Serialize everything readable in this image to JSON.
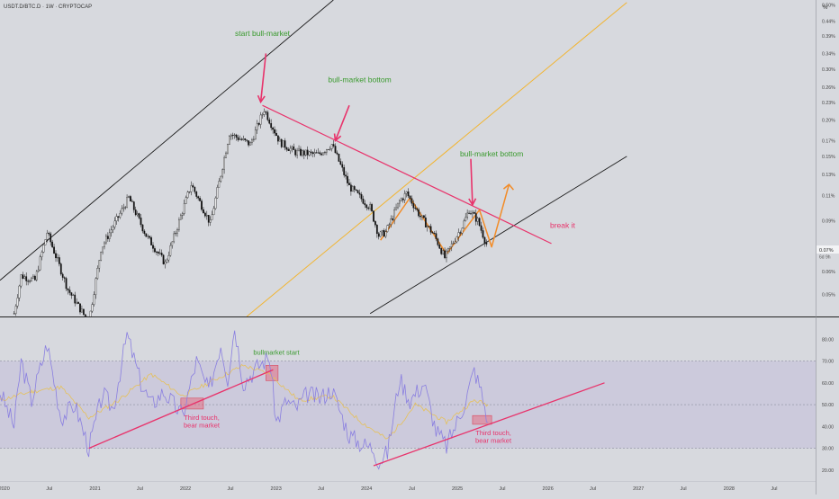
{
  "header": {
    "symbol_line": "USDT.D/BTC.D · 1W · CRYPTOCAP",
    "scale_mode": "%"
  },
  "colors": {
    "background": "#d7d9de",
    "candle": "#111111",
    "channel": "#1a1a1a",
    "midline": "#f2b531",
    "resistance": "#e8336b",
    "annotation_green": "#3a9a2e",
    "annotation_red": "#e8336b",
    "projection": "#f28c28",
    "rsi_line": "#8a7fe0",
    "rsi_ma": "#e6c15a",
    "rsi_band": "rgba(170,150,215,0.22)"
  },
  "chart_data": [
    {
      "type": "candlestick",
      "title": "USDT.D/BTC.D · 1W · CRYPTOCAP",
      "ylabel": "%",
      "yscale": "log",
      "ylim": [
        0.042,
        0.52
      ],
      "xlim": [
        "2019-12-15",
        "2028-12-15"
      ],
      "grid": false,
      "price_ticks": [
        "0.05%",
        "0.06%",
        "0.09%",
        "0.11%",
        "0.13%",
        "0.15%",
        "0.17%",
        "0.20%",
        "0.23%",
        "0.26%",
        "0.30%",
        "0.34%",
        "0.39%",
        "0.44%",
        "0.50%"
      ],
      "price_tick_values": [
        0.05,
        0.06,
        0.09,
        0.11,
        0.13,
        0.15,
        0.17,
        0.2,
        0.23,
        0.26,
        0.3,
        0.34,
        0.39,
        0.44,
        0.5
      ],
      "last_price_label": "0.07%",
      "countdown_label": "6d 9h",
      "last_value": 0.072,
      "path": [
        [
          "2020-02-10",
          0.043
        ],
        [
          "2020-03-09",
          0.058
        ],
        [
          "2020-05-04",
          0.056
        ],
        [
          "2020-06-22",
          0.082
        ],
        [
          "2020-09-14",
          0.052
        ],
        [
          "2020-12-07",
          0.04
        ],
        [
          "2021-01-25",
          0.072
        ],
        [
          "2021-05-17",
          0.108
        ],
        [
          "2021-07-26",
          0.08
        ],
        [
          "2021-10-11",
          0.064
        ],
        [
          "2022-01-24",
          0.12
        ],
        [
          "2022-04-11",
          0.088
        ],
        [
          "2022-06-27",
          0.18
        ],
        [
          "2022-09-19",
          0.165
        ],
        [
          "2022-11-14",
          0.218
        ],
        [
          "2023-01-16",
          0.168
        ],
        [
          "2023-03-20",
          0.155
        ],
        [
          "2023-06-19",
          0.152
        ],
        [
          "2023-08-14",
          0.165
        ],
        [
          "2023-10-23",
          0.118
        ],
        [
          "2024-01-15",
          0.1
        ],
        [
          "2024-02-19",
          0.08
        ],
        [
          "2024-03-18",
          0.082
        ],
        [
          "2024-05-13",
          0.105
        ],
        [
          "2024-06-10",
          0.112
        ],
        [
          "2024-08-05",
          0.093
        ],
        [
          "2024-09-30",
          0.08
        ],
        [
          "2024-11-11",
          0.067
        ],
        [
          "2024-12-16",
          0.076
        ],
        [
          "2025-01-20",
          0.086
        ],
        [
          "2025-02-17",
          0.098
        ],
        [
          "2025-03-24",
          0.09
        ],
        [
          "2025-05-05",
          0.072
        ]
      ],
      "channel_upper": [
        [
          "2019-12-15",
          0.056
        ],
        [
          "2023-08-20",
          0.52
        ]
      ],
      "channel_lower": [
        [
          "2024-01-15",
          0.043
        ],
        [
          "2026-11-15",
          0.15
        ]
      ],
      "channel_mid": [
        [
          "2022-09-05",
          0.042
        ],
        [
          "2026-11-15",
          0.51
        ]
      ],
      "resistance": [
        [
          "2022-11-07",
          0.225
        ],
        [
          "2026-01-15",
          0.075
        ]
      ],
      "projection_zigzag": [
        [
          "2024-02-26",
          0.077
        ],
        [
          "2024-06-24",
          0.108
        ],
        [
          "2024-11-18",
          0.069
        ],
        [
          "2025-03-31",
          0.098
        ],
        [
          "2025-05-19",
          0.073
        ],
        [
          "2025-07-28",
          0.12
        ]
      ],
      "annotations": [
        {
          "text": "start bull-market",
          "at": [
            "2022-11-07",
            0.39
          ],
          "color": "green"
        },
        {
          "text": "bull-market bottom",
          "at": [
            "2023-12-04",
            0.27
          ],
          "color": "green"
        },
        {
          "text": "bull-market bottom",
          "at": [
            "2025-05-19",
            0.15
          ],
          "color": "green"
        },
        {
          "text": "break it",
          "at": [
            "2026-03-01",
            0.085
          ],
          "color": "red"
        }
      ],
      "arrows": [
        {
          "from": [
            "2022-11-21",
            0.34
          ],
          "to": [
            "2022-10-31",
            0.231
          ]
        },
        {
          "from": [
            "2023-10-23",
            0.225
          ],
          "to": [
            "2023-08-28",
            0.17
          ]
        },
        {
          "from": [
            "2025-02-24",
            0.147
          ],
          "to": [
            "2025-03-03",
            0.102
          ]
        }
      ]
    },
    {
      "type": "line",
      "title": "",
      "ylim": [
        15,
        90
      ],
      "xlim": [
        "2019-12-15",
        "2028-12-15"
      ],
      "rsi_ticks": [
        "20.00",
        "30.00",
        "40.00",
        "50.00",
        "60.00",
        "70.00",
        "80.00"
      ],
      "rsi_tick_values": [
        20,
        30,
        40,
        50,
        60,
        70,
        80
      ],
      "band": [
        30,
        70
      ],
      "midline": 50,
      "x_ticks": [
        "2020",
        "Jul",
        "2021",
        "Jul",
        "2022",
        "Jul",
        "2023",
        "Jul",
        "2024",
        "Jul",
        "2025",
        "Jul",
        "2026",
        "Jul",
        "2027",
        "Jul",
        "2028",
        "Jul"
      ],
      "x_tick_dates": [
        "2020-01-01",
        "2020-07-01",
        "2021-01-01",
        "2021-07-01",
        "2022-01-01",
        "2022-07-01",
        "2023-01-01",
        "2023-07-01",
        "2024-01-01",
        "2024-07-01",
        "2025-01-01",
        "2025-07-01",
        "2026-01-01",
        "2026-07-01",
        "2027-01-01",
        "2027-07-01",
        "2028-01-01",
        "2028-07-01"
      ],
      "rsi_path": [
        [
          "2019-12-15",
          56
        ],
        [
          "2020-02-10",
          40
        ],
        [
          "2020-03-09",
          70
        ],
        [
          "2020-04-20",
          52
        ],
        [
          "2020-06-22",
          78
        ],
        [
          "2020-08-17",
          44
        ],
        [
          "2020-10-12",
          50
        ],
        [
          "2020-12-07",
          30
        ],
        [
          "2021-02-01",
          55
        ],
        [
          "2021-03-15",
          48
        ],
        [
          "2021-05-10",
          82
        ],
        [
          "2021-07-05",
          60
        ],
        [
          "2021-08-16",
          50
        ],
        [
          "2021-10-04",
          56
        ],
        [
          "2021-12-20",
          45
        ],
        [
          "2022-02-14",
          70
        ],
        [
          "2022-04-04",
          56
        ],
        [
          "2022-05-23",
          78
        ],
        [
          "2022-06-20",
          62
        ],
        [
          "2022-07-18",
          86
        ],
        [
          "2022-08-22",
          60
        ],
        [
          "2022-10-24",
          68
        ],
        [
          "2022-12-05",
          72
        ],
        [
          "2023-01-02",
          42
        ],
        [
          "2023-02-13",
          52
        ],
        [
          "2023-03-20",
          48
        ],
        [
          "2023-05-08",
          55
        ],
        [
          "2023-06-26",
          53
        ],
        [
          "2023-08-14",
          57
        ],
        [
          "2023-10-23",
          36
        ],
        [
          "2023-12-11",
          32
        ],
        [
          "2024-01-29",
          30
        ],
        [
          "2024-02-19",
          24
        ],
        [
          "2024-03-25",
          28
        ],
        [
          "2024-05-13",
          62
        ],
        [
          "2024-06-24",
          52
        ],
        [
          "2024-08-19",
          60
        ],
        [
          "2024-10-07",
          38
        ],
        [
          "2024-11-18",
          31
        ],
        [
          "2024-12-30",
          42
        ],
        [
          "2025-02-03",
          52
        ],
        [
          "2025-03-10",
          66
        ],
        [
          "2025-04-07",
          56
        ],
        [
          "2025-05-05",
          42
        ]
      ],
      "rsi_ma_path": [
        [
          "2019-12-15",
          52
        ],
        [
          "2020-04-20",
          56
        ],
        [
          "2020-08-17",
          58
        ],
        [
          "2020-12-07",
          44
        ],
        [
          "2021-04-05",
          52
        ],
        [
          "2021-08-16",
          64
        ],
        [
          "2021-12-20",
          54
        ],
        [
          "2022-04-04",
          60
        ],
        [
          "2022-08-22",
          68
        ],
        [
          "2022-12-05",
          64
        ],
        [
          "2023-04-03",
          52
        ],
        [
          "2023-08-14",
          54
        ],
        [
          "2023-12-11",
          42
        ],
        [
          "2024-03-25",
          34
        ],
        [
          "2024-07-15",
          50
        ],
        [
          "2024-11-18",
          42
        ],
        [
          "2025-03-10",
          52
        ],
        [
          "2025-05-05",
          50
        ]
      ],
      "trendlines": [
        [
          [
            "2020-12-07",
            30
          ],
          [
            "2022-12-20",
            66
          ]
        ],
        [
          [
            "2024-01-29",
            22
          ],
          [
            "2026-08-17",
            60
          ]
        ]
      ],
      "boxes": [
        {
          "x": [
            "2021-12-13",
            "2022-03-14"
          ],
          "y": [
            48,
            53
          ]
        },
        {
          "x": [
            "2022-11-21",
            "2023-01-09"
          ],
          "y": [
            61,
            68
          ]
        },
        {
          "x": [
            "2025-03-03",
            "2025-05-19"
          ],
          "y": [
            41,
            45
          ]
        }
      ],
      "annotations": [
        {
          "text": "Third touch,\nbear market",
          "at": [
            "2022-03-07",
            43
          ],
          "color": "red"
        },
        {
          "text": "bullmarket start",
          "at": [
            "2023-01-02",
            73
          ],
          "color": "green"
        },
        {
          "text": "Third touch,\nbear market",
          "at": [
            "2025-05-26",
            36
          ],
          "color": "red"
        }
      ]
    }
  ]
}
